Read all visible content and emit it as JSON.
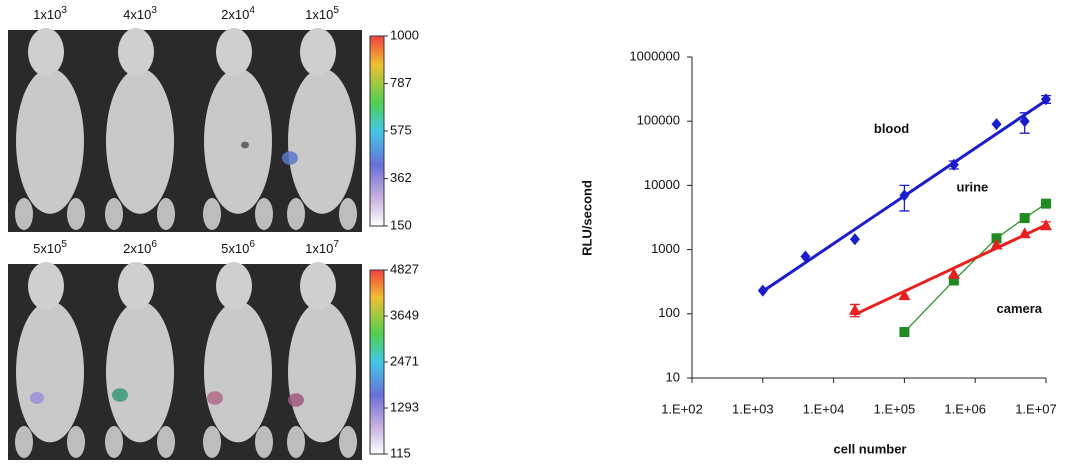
{
  "imaging": {
    "rows": [
      {
        "labels": [
          {
            "base": "1x10",
            "exp": "3"
          },
          {
            "base": "4x10",
            "exp": "3"
          },
          {
            "base": "2x10",
            "exp": "4"
          },
          {
            "base": "1x10",
            "exp": "5"
          }
        ],
        "colorbar_ticks": [
          1000,
          787,
          575,
          362,
          150
        ]
      },
      {
        "labels": [
          {
            "base": "5x10",
            "exp": "5"
          },
          {
            "base": "2x10",
            "exp": "6"
          },
          {
            "base": "5x10",
            "exp": "6"
          },
          {
            "base": "1x10",
            "exp": "7"
          }
        ],
        "colorbar_ticks": [
          4827,
          3649,
          2471,
          1293,
          115
        ]
      }
    ]
  },
  "chart_data": {
    "type": "scatter",
    "xlabel": "cell number",
    "ylabel": "RLU/second",
    "xscale": "log",
    "yscale": "log",
    "xlim": [
      100,
      10000000
    ],
    "ylim": [
      10,
      1000000
    ],
    "xticks": [
      {
        "value": 100,
        "label": "1.E+02"
      },
      {
        "value": 1000,
        "label": "1.E+03"
      },
      {
        "value": 10000,
        "label": "1.E+04"
      },
      {
        "value": 100000,
        "label": "1.E+05"
      },
      {
        "value": 1000000,
        "label": "1.E+06"
      },
      {
        "value": 10000000,
        "label": "1.E+07"
      }
    ],
    "yticks": [
      10,
      100,
      1000,
      10000,
      100000,
      1000000
    ],
    "series": [
      {
        "name": "blood",
        "color": "#1c1ccc",
        "marker": "diamond",
        "line": "fit",
        "x": [
          1000,
          4000,
          20000,
          100000,
          500000,
          2000000,
          5000000,
          10000000
        ],
        "values": [
          230,
          780,
          1450,
          7000,
          21000,
          90000,
          100000,
          220000
        ],
        "errors": [
          null,
          null,
          null,
          3000,
          3000,
          null,
          35000,
          30000
        ]
      },
      {
        "name": "urine",
        "color": "#1e8c1e",
        "marker": "square",
        "line": "connect",
        "x": [
          100000,
          500000,
          2000000,
          5000000,
          10000000
        ],
        "values": [
          52,
          330,
          1500,
          3100,
          5200
        ],
        "errors": [
          null,
          null,
          null,
          null,
          null
        ]
      },
      {
        "name": "camera",
        "color": "#e82020",
        "marker": "triangle",
        "line": "fit",
        "x": [
          20000,
          100000,
          500000,
          2000000,
          5000000,
          10000000
        ],
        "values": [
          115,
          195,
          420,
          1200,
          1800,
          2400
        ],
        "errors": [
          25,
          null,
          null,
          null,
          null,
          300
        ]
      }
    ]
  }
}
